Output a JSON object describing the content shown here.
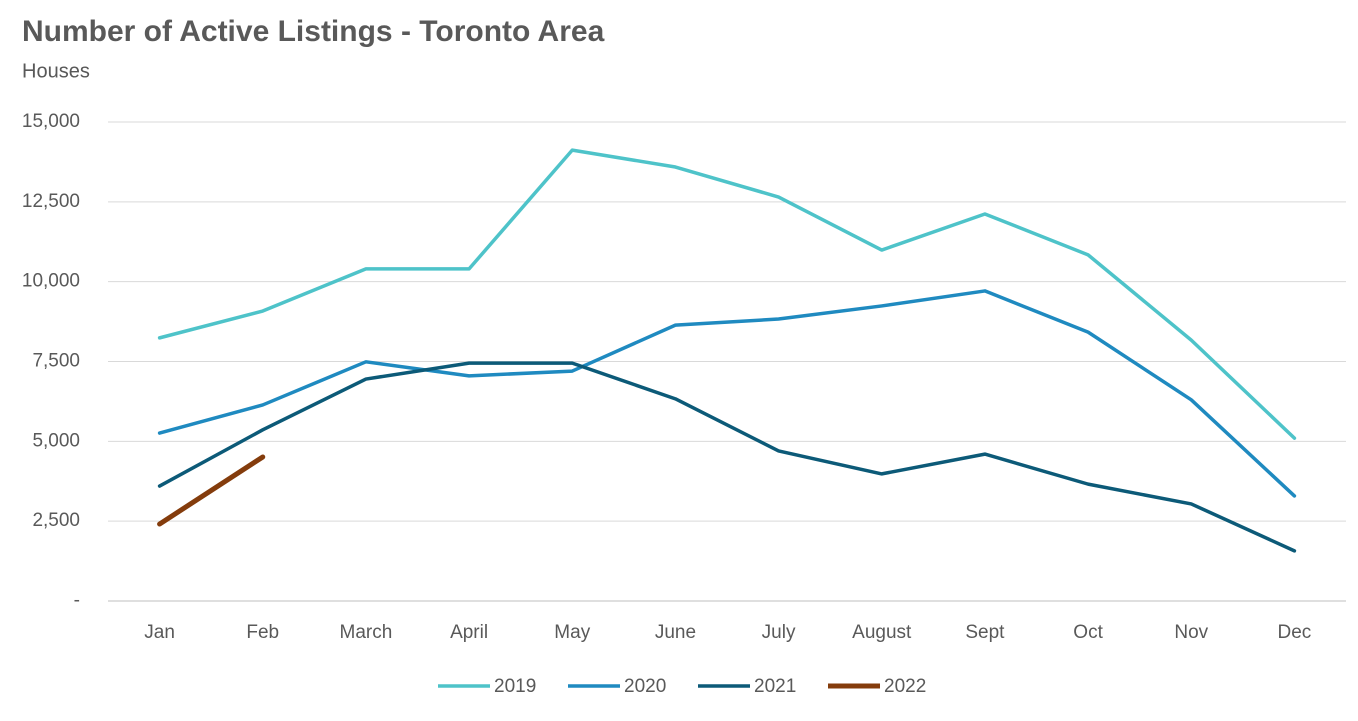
{
  "chart_data": {
    "type": "line",
    "title": "Number of Active Listings - Toronto Area",
    "subtitle": "Houses",
    "categories": [
      "Jan",
      "Feb",
      "March",
      "April",
      "May",
      "June",
      "July",
      "August",
      "Sept",
      "Oct",
      "Nov",
      "Dec"
    ],
    "series": [
      {
        "name": "2019",
        "color": "#4ec3c9",
        "values": [
          8240,
          9080,
          10400,
          10400,
          14120,
          13590,
          12650,
          10990,
          12120,
          10840,
          8170,
          5100
        ]
      },
      {
        "name": "2020",
        "color": "#1f8ac0",
        "values": [
          5260,
          6140,
          7490,
          7050,
          7200,
          8640,
          8830,
          9240,
          9710,
          8420,
          6300,
          3290
        ]
      },
      {
        "name": "2021",
        "color": "#0c5a78",
        "values": [
          3600,
          5360,
          6950,
          7450,
          7450,
          6330,
          4700,
          3980,
          4600,
          3660,
          3040,
          1570
        ]
      },
      {
        "name": "2022",
        "color": "#843c0c",
        "values": [
          2410,
          4510,
          null,
          null,
          null,
          null,
          null,
          null,
          null,
          null,
          null,
          null
        ]
      }
    ],
    "ylim": [
      0,
      15000
    ],
    "yticks": [
      {
        "value": 0,
        "label": "-"
      },
      {
        "value": 2500,
        "label": "2,500"
      },
      {
        "value": 5000,
        "label": "5,000"
      },
      {
        "value": 7500,
        "label": "7,500"
      },
      {
        "value": 10000,
        "label": "10,000"
      },
      {
        "value": 12500,
        "label": "12,500"
      },
      {
        "value": 15000,
        "label": "15,000"
      }
    ],
    "grid": true,
    "legend": "bottom"
  }
}
